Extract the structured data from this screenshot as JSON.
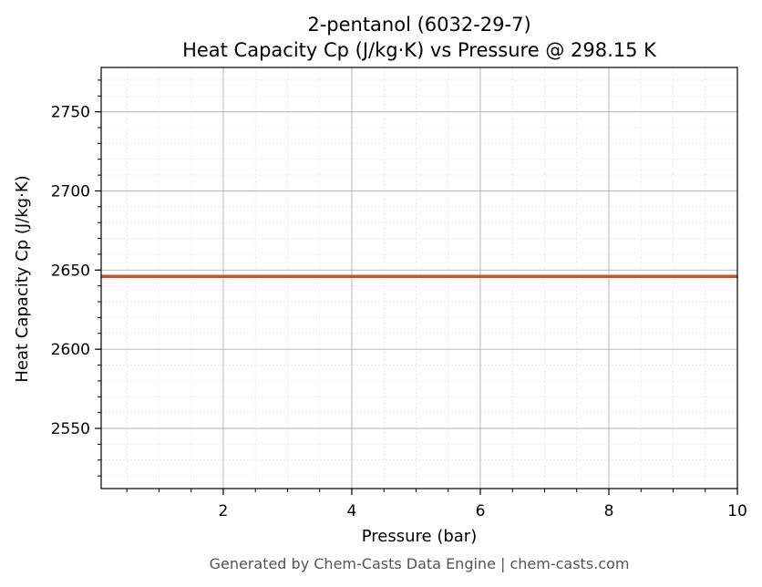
{
  "chart_data": {
    "type": "line",
    "title": "2-pentanol (6032-29-7)",
    "subtitle": "Heat Capacity Cp (J/kg·K) vs Pressure @ 298.15 K",
    "xlabel": "Pressure (bar)",
    "ylabel": "Heat Capacity Cp (J/kg·K)",
    "xlim": [
      0.1,
      10
    ],
    "ylim": [
      2512,
      2778
    ],
    "x_ticks": [
      2,
      4,
      6,
      8,
      10
    ],
    "y_ticks": [
      2550,
      2600,
      2650,
      2700,
      2750
    ],
    "x_minor_step": 0.5,
    "y_minor_step": 10,
    "grid": true,
    "series": [
      {
        "x": [
          0.1,
          10
        ],
        "values": [
          2646,
          2646
        ],
        "color": "#c8532a"
      }
    ]
  },
  "footer": "Generated by Chem-Casts Data Engine | chem-casts.com"
}
